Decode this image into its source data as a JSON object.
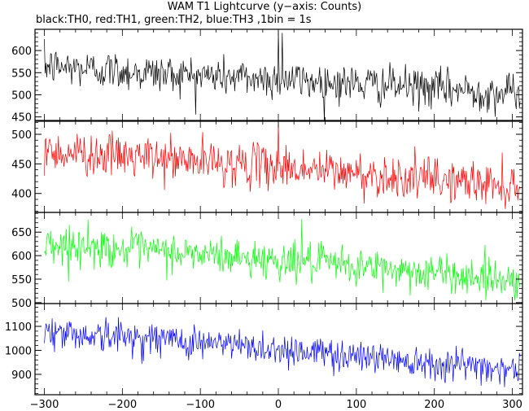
{
  "chart_data": {
    "type": "line",
    "title": "WAM T1 Lightcurve (y−axis: Counts)",
    "subtitle": "black:TH0, red:TH1, green:TH2, blue:TH3 ,1bin = 1s",
    "xlim": [
      -312,
      313
    ],
    "x_ticks": [
      -300,
      -200,
      -100,
      0,
      100,
      200,
      300
    ],
    "x_range_data": [
      -300,
      310
    ],
    "grid": false,
    "panels": [
      {
        "name": "TH0",
        "color": "#000000",
        "ylim": [
          442,
          648
        ],
        "y_ticks": [
          450,
          500,
          550,
          600
        ],
        "trend": [
          [
            -300,
            565
          ],
          [
            -150,
            548
          ],
          [
            0,
            535
          ],
          [
            150,
            520
          ],
          [
            310,
            502
          ]
        ],
        "noise_sd": 22,
        "highlights": [
          [
            0,
            645
          ],
          [
            5,
            640
          ]
        ]
      },
      {
        "name": "TH1",
        "color": "#ff0000",
        "ylim": [
          368,
          522
        ],
        "y_ticks": [
          400,
          450,
          500
        ],
        "trend": [
          [
            -300,
            472
          ],
          [
            -150,
            458
          ],
          [
            0,
            445
          ],
          [
            150,
            428
          ],
          [
            310,
            413
          ]
        ],
        "noise_sd": 18,
        "highlights": [
          [
            0,
            520
          ]
        ]
      },
      {
        "name": "TH2",
        "color": "#00ff00",
        "ylim": [
          498,
          692
        ],
        "y_ticks": [
          500,
          550,
          600,
          650
        ],
        "trend": [
          [
            -300,
            625
          ],
          [
            -150,
            608
          ],
          [
            0,
            590
          ],
          [
            150,
            570
          ],
          [
            310,
            548
          ]
        ],
        "noise_sd": 20,
        "highlights": [
          [
            30,
            678
          ]
        ]
      },
      {
        "name": "TH3",
        "color": "#0000ff",
        "ylim": [
          815,
          1195
        ],
        "y_ticks": [
          900,
          1000,
          1100
        ],
        "trend": [
          [
            -300,
            1075
          ],
          [
            -150,
            1048
          ],
          [
            0,
            1005
          ],
          [
            150,
            965
          ],
          [
            310,
            920
          ]
        ],
        "noise_sd": 35,
        "highlights": []
      }
    ]
  }
}
